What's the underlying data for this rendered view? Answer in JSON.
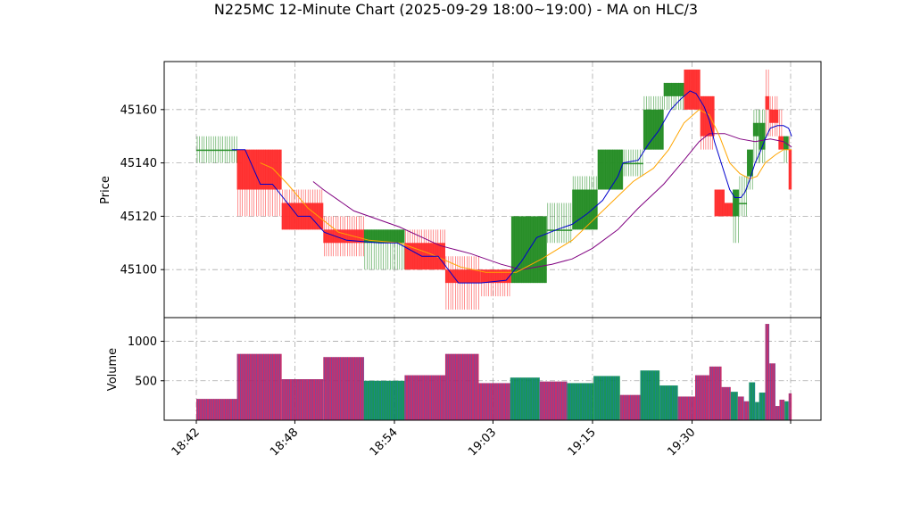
{
  "chart_data": [
    {
      "type": "candlestick",
      "title": "N225MC 12-Minute Chart (2025-09-29 18:00~19:00) - MA on HLC/3",
      "xlabel": "",
      "ylabel": "Price",
      "ylim": [
        45082,
        45178
      ],
      "yticks": [
        45100,
        45120,
        45140,
        45160
      ],
      "grid": true,
      "colors": {
        "up": "#228B22",
        "down": "#FF2A2A",
        "ma_short": "#0000CD",
        "ma_mid": "#FFA500",
        "ma_long": "#800080"
      },
      "candles": [
        {
          "t0": 0.0,
          "t1": 4.0,
          "open": 45145,
          "high": 45150,
          "low": 45140,
          "close": 45145
        },
        {
          "t0": 4.0,
          "t1": 8.4,
          "open": 45145,
          "high": 45145,
          "low": 45120,
          "close": 45130
        },
        {
          "t0": 8.4,
          "t1": 12.5,
          "open": 45125,
          "high": 45130,
          "low": 45115,
          "close": 45115
        },
        {
          "t0": 12.5,
          "t1": 16.5,
          "open": 45115,
          "high": 45120,
          "low": 45105,
          "close": 45110
        },
        {
          "t0": 16.5,
          "t1": 20.5,
          "open": 45110,
          "high": 45115,
          "low": 45100,
          "close": 45115
        },
        {
          "t0": 20.5,
          "t1": 24.5,
          "open": 45110,
          "high": 45115,
          "low": 45100,
          "close": 45100
        },
        {
          "t0": 24.5,
          "t1": 28.0,
          "open": 45100,
          "high": 45105,
          "low": 45085,
          "close": 45095
        },
        {
          "t0": 28.0,
          "t1": 31.0,
          "open": 45100,
          "high": 45100,
          "low": 45090,
          "close": 45095
        },
        {
          "t0": 31.0,
          "t1": 34.5,
          "open": 45095,
          "high": 45120,
          "low": 45095,
          "close": 45120
        },
        {
          "t0": 34.5,
          "t1": 37.0,
          "open": 45115,
          "high": 45125,
          "low": 45110,
          "close": 45115
        },
        {
          "t0": 37.0,
          "t1": 39.5,
          "open": 45115,
          "high": 45135,
          "low": 45115,
          "close": 45130
        },
        {
          "t0": 39.5,
          "t1": 42.0,
          "open": 45130,
          "high": 45145,
          "low": 45130,
          "close": 45145
        },
        {
          "t0": 42.0,
          "t1": 44.0,
          "open": 45140,
          "high": 45145,
          "low": 45135,
          "close": 45140
        },
        {
          "t0": 44.0,
          "t1": 46.0,
          "open": 45145,
          "high": 45165,
          "low": 45145,
          "close": 45160
        },
        {
          "t0": 46.0,
          "t1": 48.0,
          "open": 45165,
          "high": 45170,
          "low": 45160,
          "close": 45170
        },
        {
          "t0": 48.0,
          "t1": 49.6,
          "open": 45175,
          "high": 45175,
          "low": 45160,
          "close": 45160
        },
        {
          "t0": 49.6,
          "t1": 51.0,
          "open": 45165,
          "high": 45165,
          "low": 45145,
          "close": 45150
        },
        {
          "t0": 51.0,
          "t1": 52.0,
          "open": 45130,
          "high": 45130,
          "low": 45120,
          "close": 45120
        },
        {
          "t0": 52.0,
          "t1": 52.8,
          "open": 45125,
          "high": 45125,
          "low": 45120,
          "close": 45120
        },
        {
          "t0": 52.8,
          "t1": 53.4,
          "open": 45120,
          "high": 45130,
          "low": 45110,
          "close": 45130
        },
        {
          "t0": 53.4,
          "t1": 54.2,
          "open": 45125,
          "high": 45135,
          "low": 45120,
          "close": 45125
        },
        {
          "t0": 54.2,
          "t1": 54.8,
          "open": 45135,
          "high": 45145,
          "low": 45130,
          "close": 45145
        },
        {
          "t0": 54.8,
          "t1": 55.4,
          "open": 45150,
          "high": 45160,
          "low": 45140,
          "close": 45155
        },
        {
          "t0": 55.4,
          "t1": 56.0,
          "open": 45145,
          "high": 45160,
          "low": 45140,
          "close": 45155
        },
        {
          "t0": 56.0,
          "t1": 56.4,
          "open": 45165,
          "high": 45175,
          "low": 45150,
          "close": 45160
        },
        {
          "t0": 56.4,
          "t1": 57.3,
          "open": 45160,
          "high": 45165,
          "low": 45150,
          "close": 45155
        },
        {
          "t0": 57.3,
          "t1": 57.8,
          "open": 45150,
          "high": 45160,
          "low": 45145,
          "close": 45145
        },
        {
          "t0": 57.8,
          "t1": 58.3,
          "open": 45145,
          "high": 45150,
          "low": 45140,
          "close": 45150
        },
        {
          "t0": 58.3,
          "t1": 58.6,
          "open": 45145,
          "high": 45150,
          "low": 45130,
          "close": 45130
        }
      ],
      "ma_short": [
        [
          3.5,
          45145
        ],
        [
          4.8,
          45145
        ],
        [
          6.3,
          45132
        ],
        [
          7.5,
          45132
        ],
        [
          10.0,
          45120
        ],
        [
          11.2,
          45120
        ],
        [
          12.6,
          45114
        ],
        [
          14.8,
          45111
        ],
        [
          18.0,
          45110
        ],
        [
          19.8,
          45110
        ],
        [
          22.2,
          45105
        ],
        [
          23.8,
          45105
        ],
        [
          25.8,
          45095
        ],
        [
          28.0,
          45095
        ],
        [
          30.5,
          45096
        ],
        [
          32.0,
          45103
        ],
        [
          33.5,
          45112
        ],
        [
          35.5,
          45115
        ],
        [
          37.0,
          45117
        ],
        [
          38.5,
          45121
        ],
        [
          40.0,
          45126
        ],
        [
          41.5,
          45135
        ],
        [
          42.0,
          45140
        ],
        [
          43.5,
          45141
        ],
        [
          44.5,
          45147
        ],
        [
          45.5,
          45152
        ],
        [
          46.7,
          45160
        ],
        [
          47.7,
          45164
        ],
        [
          48.6,
          45167
        ],
        [
          49.2,
          45166
        ],
        [
          50.0,
          45161
        ],
        [
          50.5,
          45156
        ],
        [
          51.0,
          45148
        ],
        [
          51.5,
          45142
        ],
        [
          52.0,
          45136
        ],
        [
          52.5,
          45130
        ],
        [
          53.0,
          45127
        ],
        [
          53.6,
          45127
        ],
        [
          54.0,
          45129
        ],
        [
          54.5,
          45134
        ],
        [
          55.0,
          45140
        ],
        [
          55.5,
          45144
        ],
        [
          56.0,
          45149
        ],
        [
          56.5,
          45153
        ],
        [
          57.2,
          45154
        ],
        [
          57.8,
          45154
        ],
        [
          58.3,
          45153
        ],
        [
          58.6,
          45150
        ]
      ],
      "ma_mid": [
        [
          6.3,
          45140
        ],
        [
          7.5,
          45138
        ],
        [
          9.0,
          45132
        ],
        [
          11.0,
          45123
        ],
        [
          14.0,
          45114
        ],
        [
          17.0,
          45111
        ],
        [
          20.0,
          45110
        ],
        [
          23.0,
          45106
        ],
        [
          26.0,
          45101
        ],
        [
          28.5,
          45099
        ],
        [
          31.5,
          45099
        ],
        [
          34.0,
          45104
        ],
        [
          37.0,
          45111
        ],
        [
          40.0,
          45122
        ],
        [
          43.0,
          45133
        ],
        [
          45.0,
          45138
        ],
        [
          46.5,
          45145
        ],
        [
          48.0,
          45155
        ],
        [
          49.5,
          45160
        ],
        [
          50.5,
          45158
        ],
        [
          51.5,
          45150
        ],
        [
          52.5,
          45140
        ],
        [
          53.5,
          45136
        ],
        [
          54.0,
          45135
        ],
        [
          54.5,
          45134
        ],
        [
          55.2,
          45135
        ],
        [
          56.0,
          45140
        ],
        [
          57.0,
          45143
        ],
        [
          57.8,
          45145
        ],
        [
          58.6,
          45145
        ]
      ],
      "ma_long": [
        [
          11.5,
          45133
        ],
        [
          12.5,
          45130
        ],
        [
          15.5,
          45122
        ],
        [
          20.0,
          45116
        ],
        [
          24.0,
          45109
        ],
        [
          27.0,
          45106
        ],
        [
          30.0,
          45102
        ],
        [
          32.0,
          45100
        ],
        [
          35.0,
          45102
        ],
        [
          37.0,
          45104
        ],
        [
          39.0,
          45108
        ],
        [
          41.5,
          45115
        ],
        [
          43.5,
          45123
        ],
        [
          46.0,
          45132
        ],
        [
          48.0,
          45141
        ],
        [
          49.5,
          45148
        ],
        [
          50.5,
          45151
        ],
        [
          52.0,
          45151
        ],
        [
          53.5,
          45149
        ],
        [
          55.0,
          45148
        ],
        [
          56.5,
          45149
        ],
        [
          57.8,
          45148
        ],
        [
          58.6,
          45146
        ]
      ]
    },
    {
      "type": "bar",
      "xlabel": "",
      "ylabel": "Volume",
      "ylim": [
        0,
        1300
      ],
      "yticks": [
        500,
        1000
      ],
      "grid": true,
      "xticks": [
        {
          "t": 0.0,
          "label": "18:42"
        },
        {
          "t": 9.7,
          "label": "18:48"
        },
        {
          "t": 19.5,
          "label": "18:54"
        },
        {
          "t": 29.2,
          "label": "19:03"
        },
        {
          "t": 39.0,
          "label": "19:15"
        },
        {
          "t": 48.8,
          "label": "19:30"
        },
        {
          "t": 58.5,
          "label": ""
        }
      ],
      "bars": [
        {
          "t0": 0.0,
          "t1": 4.0,
          "value": 270,
          "color": "#C2185B"
        },
        {
          "t0": 4.0,
          "t1": 8.4,
          "value": 840,
          "color": "#C2185B"
        },
        {
          "t0": 8.4,
          "t1": 12.5,
          "value": 520,
          "color": "#C2185B"
        },
        {
          "t0": 12.5,
          "t1": 16.5,
          "value": 800,
          "color": "#C2185B"
        },
        {
          "t0": 16.5,
          "t1": 20.5,
          "value": 500,
          "color": "#008B45"
        },
        {
          "t0": 20.5,
          "t1": 24.5,
          "value": 570,
          "color": "#C2185B"
        },
        {
          "t0": 24.5,
          "t1": 27.8,
          "value": 840,
          "color": "#C2185B"
        },
        {
          "t0": 27.8,
          "t1": 30.9,
          "value": 470,
          "color": "#C2185B"
        },
        {
          "t0": 30.9,
          "t1": 33.8,
          "value": 540,
          "color": "#008B45"
        },
        {
          "t0": 33.8,
          "t1": 36.5,
          "value": 490,
          "color": "#C2185B"
        },
        {
          "t0": 36.5,
          "t1": 39.1,
          "value": 470,
          "color": "#008B45"
        },
        {
          "t0": 39.1,
          "t1": 41.7,
          "value": 560,
          "color": "#008B45"
        },
        {
          "t0": 41.7,
          "t1": 43.7,
          "value": 320,
          "color": "#C2185B"
        },
        {
          "t0": 43.7,
          "t1": 45.6,
          "value": 630,
          "color": "#008B45"
        },
        {
          "t0": 45.6,
          "t1": 47.4,
          "value": 440,
          "color": "#008B45"
        },
        {
          "t0": 47.4,
          "t1": 49.1,
          "value": 300,
          "color": "#C2185B"
        },
        {
          "t0": 49.1,
          "t1": 50.5,
          "value": 570,
          "color": "#C2185B"
        },
        {
          "t0": 50.5,
          "t1": 51.7,
          "value": 680,
          "color": "#C2185B"
        },
        {
          "t0": 51.7,
          "t1": 52.6,
          "value": 420,
          "color": "#C2185B"
        },
        {
          "t0": 52.6,
          "t1": 53.3,
          "value": 360,
          "color": "#008B45"
        },
        {
          "t0": 53.3,
          "t1": 53.9,
          "value": 300,
          "color": "#C2185B"
        },
        {
          "t0": 53.9,
          "t1": 54.4,
          "value": 240,
          "color": "#C2185B"
        },
        {
          "t0": 54.4,
          "t1": 55.0,
          "value": 480,
          "color": "#008B45"
        },
        {
          "t0": 55.0,
          "t1": 55.4,
          "value": 230,
          "color": "#008B45"
        },
        {
          "t0": 55.4,
          "t1": 56.0,
          "value": 350,
          "color": "#008B45"
        },
        {
          "t0": 56.0,
          "t1": 56.4,
          "value": 1220,
          "color": "#C2185B"
        },
        {
          "t0": 56.4,
          "t1": 57.0,
          "value": 720,
          "color": "#C2185B"
        },
        {
          "t0": 57.0,
          "t1": 57.4,
          "value": 180,
          "color": "#C2185B"
        },
        {
          "t0": 57.4,
          "t1": 57.9,
          "value": 260,
          "color": "#C2185B"
        },
        {
          "t0": 57.9,
          "t1": 58.3,
          "value": 240,
          "color": "#008B45"
        },
        {
          "t0": 58.3,
          "t1": 58.6,
          "value": 340,
          "color": "#C2185B"
        }
      ]
    }
  ]
}
